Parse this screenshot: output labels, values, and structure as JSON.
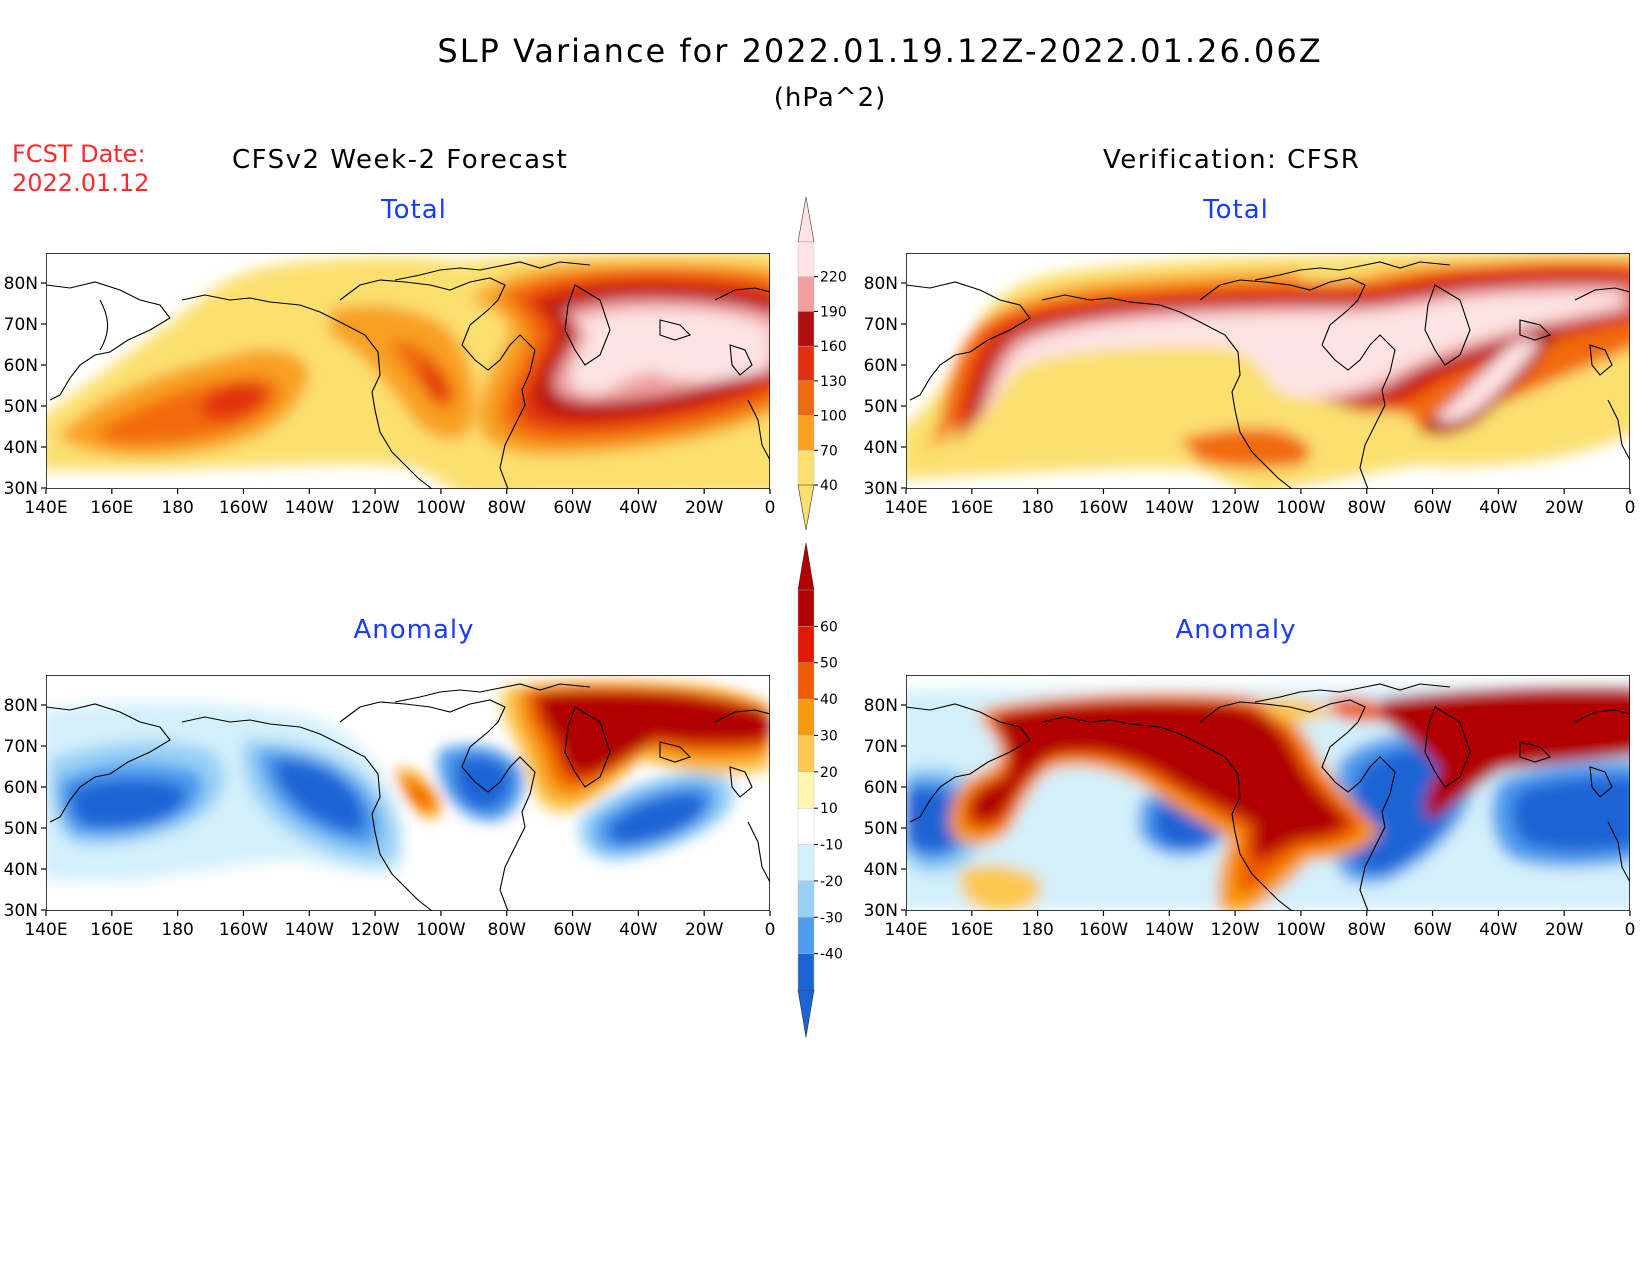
{
  "header": {
    "title": "SLP Variance for 2022.01.19.12Z-2022.01.26.06Z",
    "units": "(hPa^2)",
    "fcst_label": "FCST Date:",
    "fcst_date": "2022.01.12",
    "left_heading": "CFSv2 Week-2 Forecast",
    "right_heading": "Verification: CFSR"
  },
  "panels": {
    "total_label": "Total",
    "anomaly_label": "Anomaly"
  },
  "axes": {
    "lat_ticks": [
      "80N",
      "70N",
      "60N",
      "50N",
      "40N",
      "30N"
    ],
    "lon_ticks": [
      "140E",
      "160E",
      "180",
      "160W",
      "140W",
      "120W",
      "100W",
      "80W",
      "60W",
      "40W",
      "20W",
      "0"
    ]
  },
  "colorbars": {
    "total": {
      "labels": [
        "220",
        "190",
        "160",
        "130",
        "100",
        "70",
        "40"
      ],
      "colors": [
        "#fde3e3",
        "#f0a0a0",
        "#b01010",
        "#e03010",
        "#f26a10",
        "#f8a020",
        "#fbe070"
      ]
    },
    "anomaly": {
      "labels": [
        "60",
        "50",
        "40",
        "30",
        "20",
        "10",
        "-10",
        "-20",
        "-30",
        "-40"
      ],
      "colors": [
        "#b00000",
        "#e01a00",
        "#f05a00",
        "#f79a10",
        "#fbc850",
        "#fef6b0",
        "#ffffff",
        "#d4f0fb",
        "#98d0f6",
        "#4d9ced",
        "#1a64d6"
      ]
    }
  },
  "colors": {
    "title_text": "#000000",
    "fcst_text": "#ff2a2a",
    "panel_label": "#1a3cff"
  }
}
